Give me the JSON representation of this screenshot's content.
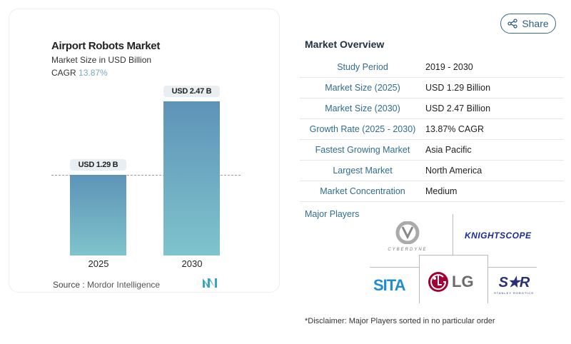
{
  "share_label": "Share",
  "chart_data": {
    "type": "bar",
    "title": "Airport Robots Market",
    "subtitle": "Market Size in USD Billion",
    "cagr_label": "CAGR",
    "cagr_value": "13.87%",
    "categories": [
      "2025",
      "2030"
    ],
    "values": [
      1.29,
      2.47
    ],
    "data_labels": [
      "USD 1.29 B",
      "USD 2.47 B"
    ],
    "colors": {
      "bar_top": "#5e93b8",
      "bar_bottom": "#7fc4cc"
    },
    "source_label": "Source :",
    "source": "Mordor Intelligence"
  },
  "overview": {
    "title": "Market Overview",
    "rows": [
      {
        "label": "Study Period",
        "value": "2019 - 2030"
      },
      {
        "label": "Market Size (2025)",
        "value": "USD 1.29 Billion"
      },
      {
        "label": "Market Size (2030)",
        "value": "USD 2.47 Billion"
      },
      {
        "label": "Growth Rate (2025 - 2030)",
        "value": "13.87% CAGR"
      },
      {
        "label": "Fastest Growing Market",
        "value": "Asia Pacific"
      },
      {
        "label": "Largest Market",
        "value": "North America"
      },
      {
        "label": "Market Concentration",
        "value": "Medium"
      }
    ]
  },
  "players": {
    "title": "Major Players",
    "logos": [
      "CYBERDYNE",
      "KNIGHTSCOPE",
      "SITA",
      "LG",
      "STANLEY ROBOTICS"
    ]
  },
  "disclaimer": "*Disclaimer: Major Players sorted in no particular order"
}
